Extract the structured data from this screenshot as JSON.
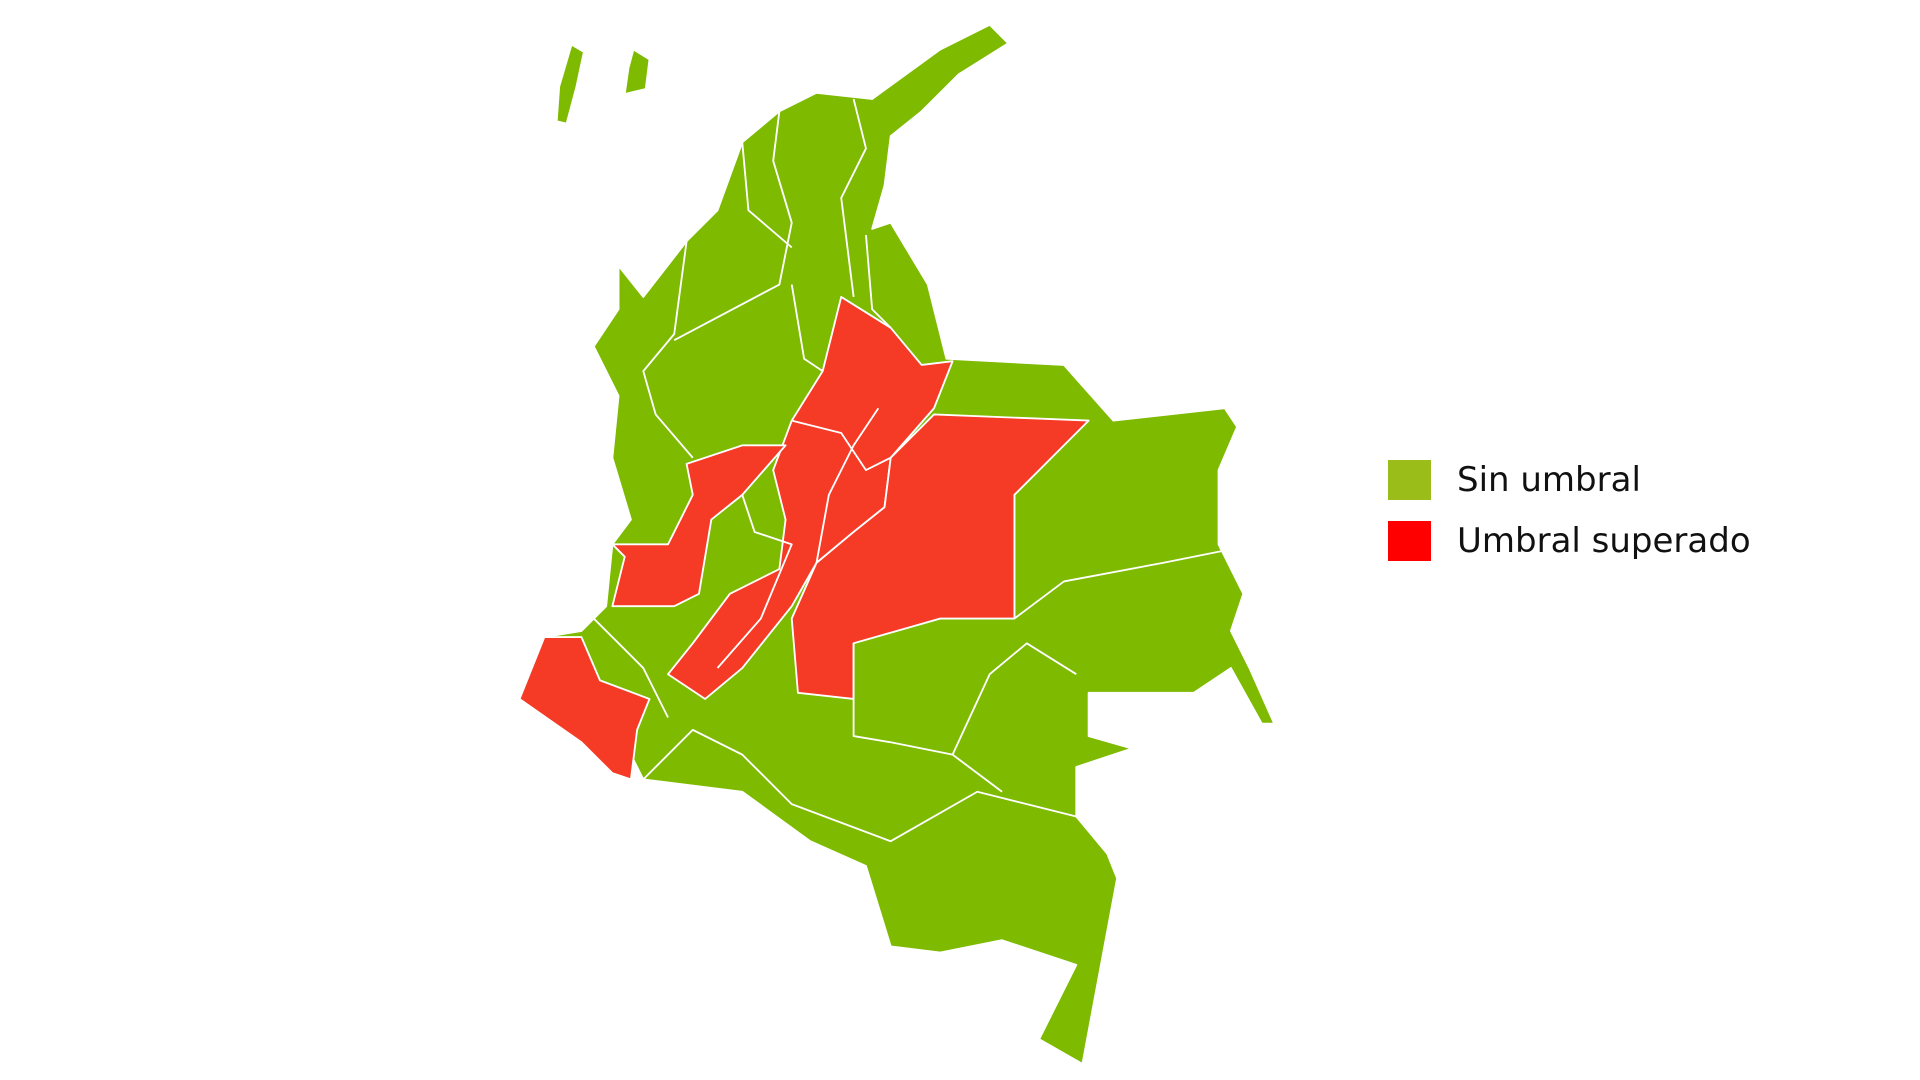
{
  "map": {
    "region": "Colombia",
    "colors": {
      "no_threshold": "#7dba00",
      "threshold_exceeded": "#f53a26",
      "border": "#ffffff"
    }
  },
  "legend": {
    "items": [
      {
        "label": "Sin umbral",
        "color": "#9bbd1a"
      },
      {
        "label": "Umbral superado",
        "color": "#ff0000"
      }
    ]
  }
}
